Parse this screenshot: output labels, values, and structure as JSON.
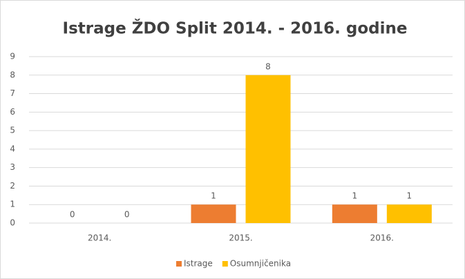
{
  "chart_data": {
    "type": "bar",
    "title": "Istrage ŽDO Split 2014. - 2016. godine",
    "categories": [
      "2014.",
      "2015.",
      "2016."
    ],
    "series": [
      {
        "name": "Istrage",
        "color": "#ed7d31",
        "values": [
          0,
          1,
          1
        ]
      },
      {
        "name": "Osumnjičenika",
        "color": "#ffc000",
        "values": [
          0,
          8,
          1
        ]
      }
    ],
    "ylim": [
      0,
      9
    ],
    "yticks": [
      0,
      1,
      2,
      3,
      4,
      5,
      6,
      7,
      8,
      9
    ],
    "grid": true,
    "legend": "bottom",
    "data_labels": true
  }
}
